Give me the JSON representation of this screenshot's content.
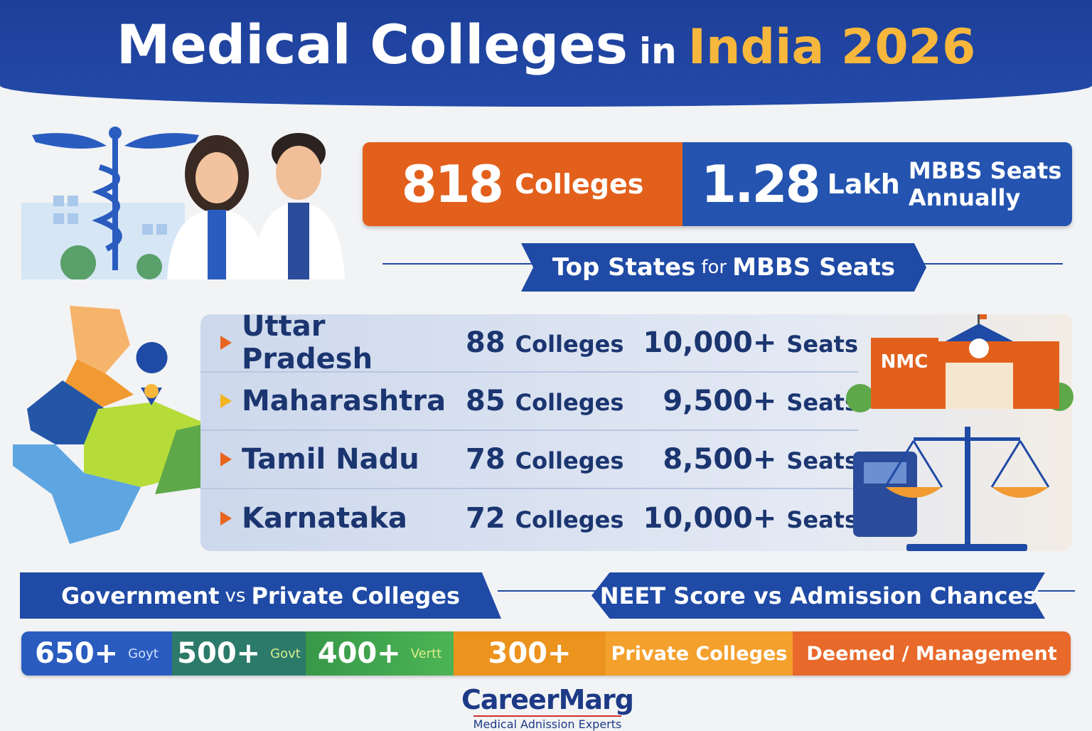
{
  "header": {
    "title_part1": "Medical Colleges",
    "title_part2": "in",
    "title_part3": "India 2026"
  },
  "stats": {
    "colleges_value": "818",
    "colleges_label": "Colleges",
    "seats_value": "1.28",
    "seats_unit": "Lakh",
    "seats_label_line1": "MBBS Seats",
    "seats_label_line2": "Annually"
  },
  "top_states": {
    "heading_part1": "Top States",
    "heading_part2": "for",
    "heading_part3": "MBBS Seats",
    "rows": [
      {
        "state": "Uttar Pradesh",
        "colleges": "88",
        "colleges_label": "Colleges",
        "seats": "10,000+",
        "seats_label": "Seats",
        "arrow_color": "#e9641e"
      },
      {
        "state": "Maharashtra",
        "colleges": "85",
        "colleges_label": "Colleges",
        "seats": "9,500+",
        "seats_label": "Seats",
        "arrow_color": "#f4b321"
      },
      {
        "state": "Tamil Nadu",
        "colleges": "78",
        "colleges_label": "Colleges",
        "seats": "8,500+",
        "seats_label": "Seats",
        "arrow_color": "#e9641e"
      },
      {
        "state": "Karnataka",
        "colleges": "72",
        "colleges_label": "Colleges",
        "seats": "10,000+",
        "seats_label": "Seats",
        "arrow_color": "#e9641e"
      }
    ]
  },
  "icons": {
    "building_sign": "NMC"
  },
  "sections": {
    "gov_part1": "Government",
    "gov_part2": "vs",
    "gov_part3": "Private Colleges",
    "neet": "NEET Score vs Admission Chances"
  },
  "score_bar": [
    {
      "value": "650+",
      "tag": "Goyt",
      "color": "#2a5cc0"
    },
    {
      "value": "500+",
      "tag": "Govt",
      "color": "#2c7a6a"
    },
    {
      "value": "400+",
      "tag": "Vertt",
      "color": "#3a9e4c"
    },
    {
      "value": "300+",
      "tag": "",
      "color": "#ec931e"
    },
    {
      "value": "",
      "tag": "Private Colleges",
      "color": "#f4a02c"
    },
    {
      "value": "",
      "tag": "Deemed / Management",
      "color": "#e8692a"
    }
  ],
  "logo": {
    "brand": "CareerMarg",
    "tagline": "Medical Adnission Experts"
  }
}
